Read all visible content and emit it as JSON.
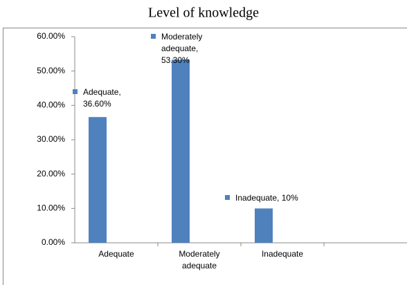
{
  "chart_data": {
    "type": "bar",
    "title": "Level of knowledge",
    "categories": [
      "Adequate",
      "Moderately adequate",
      "Inadequate",
      null
    ],
    "values": [
      36.6,
      53.3,
      10,
      null
    ],
    "value_labels": [
      "Adequate, 36.60%",
      "Moderately adequate, 53.30%",
      "Inadequate, 10%",
      null
    ],
    "color": "#4f81bd",
    "ylim": [
      0,
      60
    ],
    "yticks": [
      {
        "value": 0,
        "label": "0.00%"
      },
      {
        "value": 10,
        "label": "10.00%"
      },
      {
        "value": 20,
        "label": "20.00%"
      },
      {
        "value": 30,
        "label": "30.00%"
      },
      {
        "value": 40,
        "label": "40.00%"
      },
      {
        "value": 50,
        "label": "50.00%"
      },
      {
        "value": 60,
        "label": "60.00%"
      }
    ],
    "grid": false
  }
}
